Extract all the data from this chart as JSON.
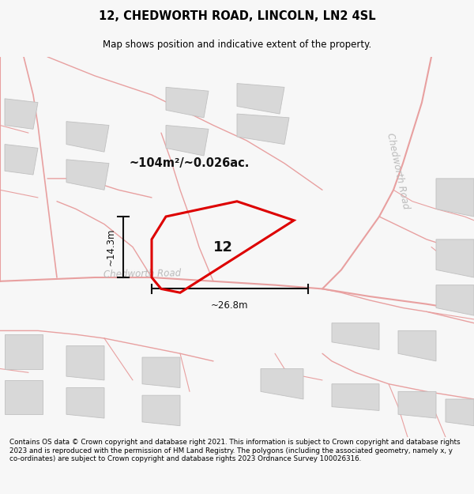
{
  "title": "12, CHEDWORTH ROAD, LINCOLN, LN2 4SL",
  "subtitle": "Map shows position and indicative extent of the property.",
  "footnote": "Contains OS data © Crown copyright and database right 2021. This information is subject to Crown copyright and database rights 2023 and is reproduced with the permission of HM Land Registry. The polygons (including the associated geometry, namely x, y co-ordinates) are subject to Crown copyright and database rights 2023 Ordnance Survey 100026316.",
  "bg_color": "#f7f7f7",
  "map_bg": "#ffffff",
  "road_line_color": "#e8a0a0",
  "building_fill": "#d8d8d8",
  "building_stroke": "#c0c0c0",
  "highlight_color": "#dd0000",
  "measure_color": "#111111",
  "road_label_color": "#bbbbbb",
  "area_label": "~104m²/~0.026ac.",
  "number_label": "12",
  "dim_height": "~14.3m",
  "dim_width": "~26.8m",
  "chedworth_road_h_label": "Chedworth Road",
  "chedworth_road_v_label": "Chedworth Road"
}
